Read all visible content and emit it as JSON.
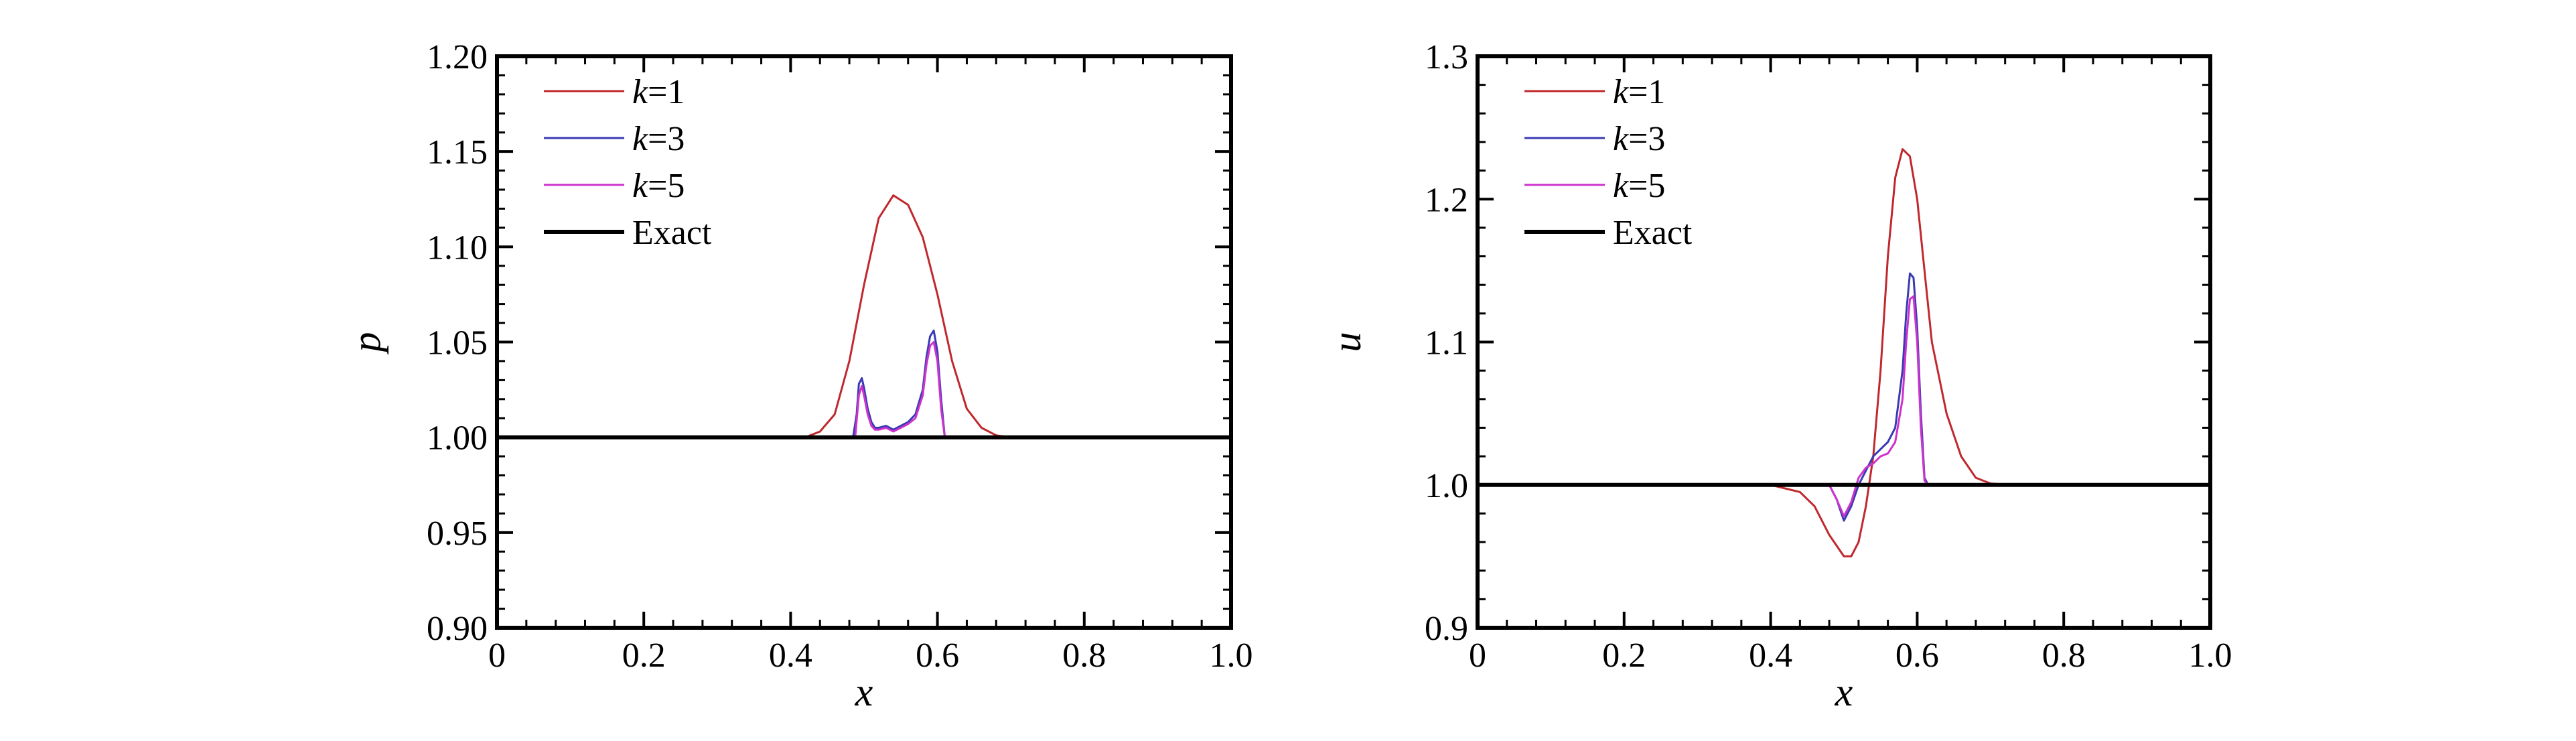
{
  "chart_data": [
    {
      "type": "line",
      "title": "",
      "xlabel": "x",
      "ylabel": "p",
      "xlim": [
        0,
        1.0
      ],
      "ylim": [
        0.9,
        1.2
      ],
      "xticks": [
        "0",
        "0.2",
        "0.4",
        "0.6",
        "0.8",
        "1.0"
      ],
      "yticks": [
        "0.90",
        "0.95",
        "1.00",
        "1.05",
        "1.10",
        "1.15",
        "1.20"
      ],
      "grid": false,
      "legend_position": "top-left",
      "series": [
        {
          "name_prefix": "k",
          "name_suffix": "=1",
          "color": "#c0282d",
          "width": 3,
          "x": [
            0.42,
            0.44,
            0.46,
            0.48,
            0.5,
            0.52,
            0.54,
            0.56,
            0.58,
            0.6,
            0.62,
            0.64,
            0.66,
            0.68,
            0.7
          ],
          "y": [
            1.0,
            1.003,
            1.012,
            1.04,
            1.08,
            1.115,
            1.127,
            1.122,
            1.105,
            1.075,
            1.04,
            1.015,
            1.005,
            1.001,
            1.0
          ]
        },
        {
          "name_prefix": "k",
          "name_suffix": "=3",
          "color": "#3a3ab4",
          "width": 3,
          "x": [
            0.485,
            0.49,
            0.493,
            0.497,
            0.5,
            0.505,
            0.51,
            0.515,
            0.52,
            0.53,
            0.54,
            0.55,
            0.56,
            0.57,
            0.58,
            0.585,
            0.59,
            0.595,
            0.6,
            0.605,
            0.61
          ],
          "y": [
            1.0,
            1.012,
            1.028,
            1.031,
            1.026,
            1.015,
            1.008,
            1.005,
            1.005,
            1.006,
            1.004,
            1.006,
            1.008,
            1.012,
            1.025,
            1.042,
            1.053,
            1.056,
            1.045,
            1.02,
            1.0
          ]
        },
        {
          "name_prefix": "k",
          "name_suffix": "=5",
          "color": "#cc33cc",
          "width": 3,
          "x": [
            0.488,
            0.493,
            0.497,
            0.5,
            0.505,
            0.51,
            0.515,
            0.52,
            0.53,
            0.54,
            0.55,
            0.56,
            0.57,
            0.58,
            0.585,
            0.59,
            0.595,
            0.6,
            0.605,
            0.61
          ],
          "y": [
            1.0,
            1.022,
            1.027,
            1.022,
            1.012,
            1.006,
            1.004,
            1.004,
            1.005,
            1.003,
            1.005,
            1.007,
            1.01,
            1.022,
            1.038,
            1.048,
            1.05,
            1.04,
            1.015,
            1.0
          ]
        },
        {
          "name": "Exact",
          "color": "#000000",
          "width": 6,
          "x": [
            0,
            1.0
          ],
          "y": [
            1.0,
            1.0
          ]
        }
      ]
    },
    {
      "type": "line",
      "title": "",
      "xlabel": "x",
      "ylabel": "u",
      "xlim": [
        0,
        1.0
      ],
      "ylim": [
        0.9,
        1.3
      ],
      "xticks": [
        "0",
        "0.2",
        "0.4",
        "0.6",
        "0.8",
        "1.0"
      ],
      "yticks": [
        "0.9",
        "1.0",
        "1.1",
        "1.2",
        "1.3"
      ],
      "grid": false,
      "legend_position": "top-left",
      "series": [
        {
          "name_prefix": "k",
          "name_suffix": "=1",
          "color": "#c0282d",
          "width": 3,
          "x": [
            0.4,
            0.44,
            0.46,
            0.48,
            0.5,
            0.51,
            0.52,
            0.53,
            0.54,
            0.55,
            0.56,
            0.57,
            0.58,
            0.59,
            0.6,
            0.61,
            0.62,
            0.64,
            0.66,
            0.68,
            0.7,
            0.73
          ],
          "y": [
            1.0,
            0.995,
            0.985,
            0.965,
            0.95,
            0.95,
            0.96,
            0.985,
            1.02,
            1.08,
            1.16,
            1.215,
            1.235,
            1.23,
            1.2,
            1.15,
            1.1,
            1.05,
            1.02,
            1.005,
            1.001,
            1.0
          ]
        },
        {
          "name_prefix": "k",
          "name_suffix": "=3",
          "color": "#3a3ab4",
          "width": 3,
          "x": [
            0.48,
            0.49,
            0.5,
            0.51,
            0.52,
            0.53,
            0.54,
            0.55,
            0.56,
            0.57,
            0.58,
            0.585,
            0.59,
            0.595,
            0.6,
            0.605,
            0.61,
            0.615
          ],
          "y": [
            1.0,
            0.99,
            0.975,
            0.985,
            1.0,
            1.01,
            1.02,
            1.025,
            1.03,
            1.04,
            1.08,
            1.12,
            1.148,
            1.145,
            1.11,
            1.05,
            1.005,
            1.0
          ]
        },
        {
          "name_prefix": "k",
          "name_suffix": "=5",
          "color": "#cc33cc",
          "width": 3,
          "x": [
            0.48,
            0.49,
            0.5,
            0.51,
            0.52,
            0.53,
            0.54,
            0.55,
            0.56,
            0.57,
            0.58,
            0.585,
            0.59,
            0.595,
            0.6,
            0.605,
            0.61,
            0.615
          ],
          "y": [
            1.0,
            0.99,
            0.978,
            0.988,
            1.005,
            1.012,
            1.015,
            1.02,
            1.022,
            1.03,
            1.06,
            1.1,
            1.13,
            1.132,
            1.1,
            1.04,
            1.003,
            1.0
          ]
        },
        {
          "name": "Exact",
          "color": "#000000",
          "width": 6,
          "x": [
            0,
            1.0
          ],
          "y": [
            1.0,
            1.0
          ]
        }
      ]
    }
  ]
}
